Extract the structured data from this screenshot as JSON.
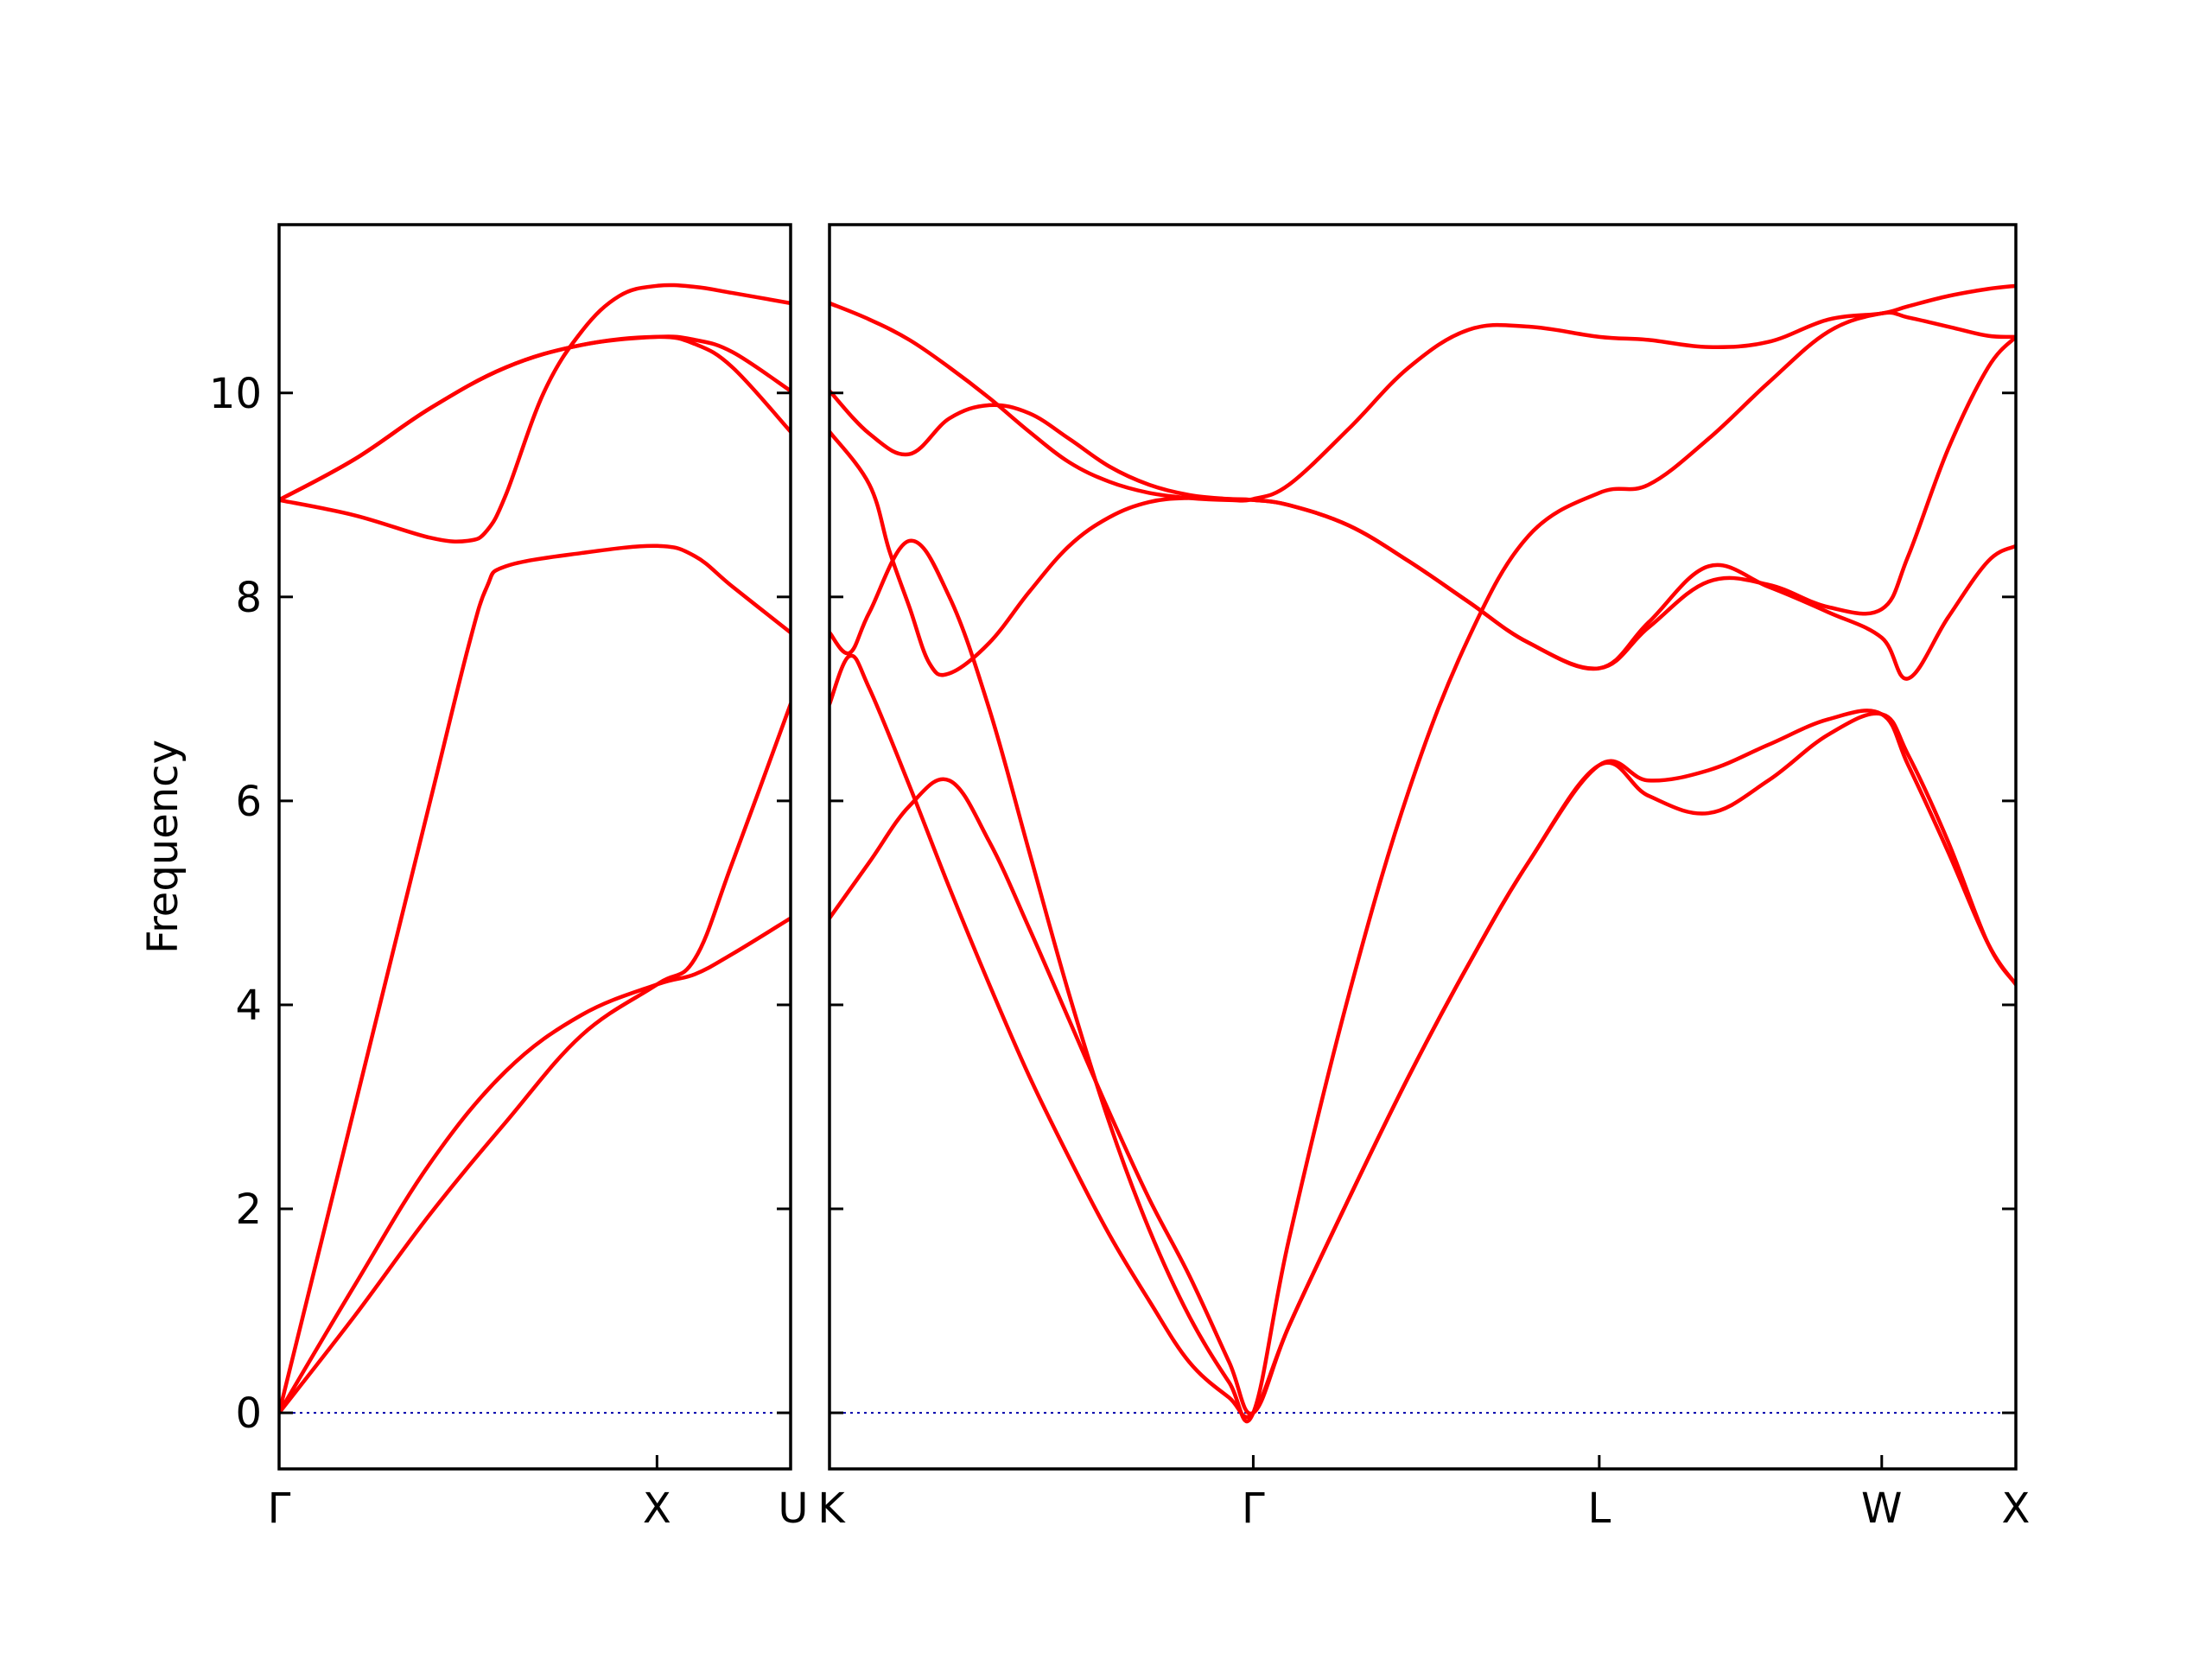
{
  "chart_data": {
    "type": "line",
    "ylabel": "Frequency",
    "ylim": [
      -0.55,
      11.65
    ],
    "yticks": [
      0,
      2,
      4,
      6,
      8,
      10
    ],
    "grid": false,
    "band_color": "#ff0000",
    "zero_line_color": "#0000aa",
    "panels": [
      {
        "name": "panel-gamma-x-u",
        "xrange": [
          0,
          1.3536
        ],
        "high_symmetry_points": [
          {
            "label": "Γ",
            "x": 0
          },
          {
            "label": "X",
            "x": 1.0
          },
          {
            "label": "U",
            "x": 1.3536
          }
        ],
        "bands": [
          {
            "x": [
              0,
              0.2,
              0.4,
              0.6,
              0.8,
              1.0,
              1.1,
              1.2,
              1.3536
            ],
            "y": [
              0,
              1.25,
              2.45,
              3.35,
              3.9,
              4.2,
              4.3,
              4.5,
              4.85
            ]
          },
          {
            "x": [
              0,
              0.2,
              0.4,
              0.5,
              0.55,
              0.6,
              0.8,
              1.0,
              1.1,
              1.2,
              1.3536
            ],
            "y": [
              0,
              3.0,
              6.0,
              7.5,
              8.1,
              8.3,
              8.43,
              8.5,
              8.4,
              8.1,
              7.65
            ]
          },
          {
            "x": [
              0,
              0.2,
              0.4,
              0.5,
              0.55,
              0.6,
              0.7,
              0.8,
              0.9,
              1.0,
              1.1,
              1.2,
              1.3536
            ],
            "y": [
              8.95,
              8.8,
              8.58,
              8.55,
              8.65,
              9.0,
              10.0,
              10.6,
              10.95,
              11.05,
              11.04,
              10.98,
              10.88
            ]
          },
          {
            "x": [
              0,
              0.2,
              0.4,
              0.6,
              0.8,
              1.0,
              1.1,
              1.2,
              1.3536
            ],
            "y": [
              8.95,
              9.35,
              9.85,
              10.25,
              10.47,
              10.55,
              10.48,
              10.25,
              9.62
            ]
          },
          {
            "x": [
              0,
              0.2,
              0.4,
              0.6,
              0.8,
              1.0,
              1.1,
              1.2,
              1.3536
            ],
            "y": [
              8.95,
              9.35,
              9.85,
              10.25,
              10.47,
              10.55,
              10.52,
              10.4,
              10.02
            ]
          },
          {
            "x": [
              0,
              0.2,
              0.4,
              0.6,
              0.8,
              1.0,
              1.1,
              1.2,
              1.3536
            ],
            "y": [
              0,
              0.95,
              1.95,
              2.85,
              3.7,
              4.2,
              4.45,
              5.4,
              6.95
            ]
          }
        ]
      },
      {
        "name": "panel-k-gamma-l-w-x",
        "xrange": [
          0,
          2.9695
        ],
        "high_symmetry_points": [
          {
            "label": "K",
            "x": 0
          },
          {
            "label": "Γ",
            "x": 1.0607
          },
          {
            "label": "L",
            "x": 1.9267
          },
          {
            "label": "W",
            "x": 2.6338
          },
          {
            "label": "X",
            "x": 2.9695
          }
        ],
        "bands": [
          {
            "x": [
              0,
              0.1,
              0.2,
              0.3,
              0.4,
              0.5,
              0.6,
              0.7,
              0.8,
              0.9,
              1.0,
              1.0607,
              1.15,
              1.3,
              1.45,
              1.6,
              1.75,
              1.9267,
              2.05,
              2.2,
              2.35,
              2.5,
              2.6338,
              2.7,
              2.8,
              2.9,
              2.9695
            ],
            "y": [
              4.85,
              5.4,
              5.95,
              6.2,
              5.6,
              4.75,
              3.85,
              2.95,
              2.1,
              1.35,
              0.5,
              0,
              0.85,
              2.1,
              3.3,
              4.4,
              5.4,
              6.35,
              6.2,
              6.3,
              6.55,
              6.8,
              6.85,
              6.35,
              5.5,
              4.6,
              4.2
            ]
          },
          {
            "x": [
              0,
              0.05,
              0.1,
              0.2,
              0.3,
              0.4,
              0.5,
              0.6,
              0.7,
              0.8,
              0.9,
              1.0,
              1.0607,
              1.15,
              1.3,
              1.45,
              1.6,
              1.75,
              1.9267,
              2.05,
              2.2,
              2.35,
              2.5,
              2.6338,
              2.7,
              2.8,
              2.9,
              2.9695
            ],
            "y": [
              6.95,
              7.42,
              7.1,
              6.15,
              5.15,
              4.2,
              3.3,
              2.5,
              1.75,
              1.1,
              0.5,
              0.15,
              0,
              0.85,
              2.1,
              3.3,
              4.4,
              5.4,
              6.35,
              6.05,
              5.88,
              6.2,
              6.65,
              6.85,
              6.45,
              5.6,
              4.6,
              4.2
            ]
          },
          {
            "x": [
              0,
              0.05,
              0.1,
              0.2,
              0.3,
              0.4,
              0.5,
              0.6,
              0.7,
              0.8,
              0.9,
              1.0,
              1.0607,
              1.15,
              1.3,
              1.45,
              1.6,
              1.75,
              1.9267,
              2.05,
              2.2,
              2.35,
              2.5,
              2.6338,
              2.7,
              2.8,
              2.9,
              2.9695
            ],
            "y": [
              7.65,
              7.45,
              7.85,
              8.55,
              8.0,
              6.9,
              5.5,
              4.1,
              2.85,
              1.8,
              0.95,
              0.3,
              0,
              1.7,
              4.1,
              6.1,
              7.6,
              8.6,
              9.02,
              9.1,
              9.55,
              10.1,
              10.6,
              10.78,
              10.74,
              10.65,
              10.56,
              10.55
            ]
          },
          {
            "x": [
              0,
              0.1,
              0.15,
              0.2,
              0.25,
              0.3,
              0.4,
              0.5,
              0.6,
              0.7,
              0.8,
              0.9,
              1.0,
              1.0607,
              1.15,
              1.3,
              1.45,
              1.6,
              1.75,
              1.9267,
              2.05,
              2.2,
              2.35,
              2.5,
              2.6338,
              2.7,
              2.8,
              2.9,
              2.9695
            ],
            "y": [
              9.62,
              9.1,
              8.45,
              7.9,
              7.35,
              7.25,
              7.55,
              8.05,
              8.5,
              8.78,
              8.93,
              8.97,
              8.96,
              8.95,
              8.9,
              8.7,
              8.35,
              7.95,
              7.55,
              7.3,
              7.75,
              8.3,
              8.1,
              7.85,
              7.6,
              7.2,
              7.8,
              8.35,
              8.5
            ]
          },
          {
            "x": [
              0,
              0.1,
              0.2,
              0.3,
              0.4,
              0.5,
              0.6,
              0.7,
              0.8,
              0.9,
              1.0,
              1.0607,
              1.15,
              1.3,
              1.45,
              1.6,
              1.75,
              1.9267,
              2.05,
              2.2,
              2.35,
              2.5,
              2.6338,
              2.7,
              2.8,
              2.9,
              2.9695
            ],
            "y": [
              10.02,
              9.6,
              9.4,
              9.75,
              9.88,
              9.8,
              9.55,
              9.28,
              9.1,
              9.0,
              8.96,
              8.95,
              8.9,
              8.7,
              8.35,
              7.95,
              7.55,
              7.3,
              7.7,
              8.15,
              8.12,
              7.9,
              7.88,
              8.4,
              9.45,
              10.25,
              10.55
            ]
          },
          {
            "x": [
              0,
              0.1,
              0.2,
              0.3,
              0.4,
              0.5,
              0.6,
              0.7,
              0.8,
              0.9,
              1.0,
              1.0607,
              1.15,
              1.3,
              1.45,
              1.6,
              1.75,
              1.9267,
              2.05,
              2.2,
              2.35,
              2.5,
              2.6338,
              2.7,
              2.8,
              2.9,
              2.9695
            ],
            "y": [
              10.88,
              10.72,
              10.52,
              10.25,
              9.95,
              9.62,
              9.32,
              9.13,
              9.02,
              8.97,
              8.95,
              8.96,
              9.1,
              9.65,
              10.25,
              10.62,
              10.65,
              10.55,
              10.52,
              10.45,
              10.5,
              10.72,
              10.78,
              10.85,
              10.95,
              11.02,
              11.05
            ]
          }
        ]
      }
    ]
  }
}
